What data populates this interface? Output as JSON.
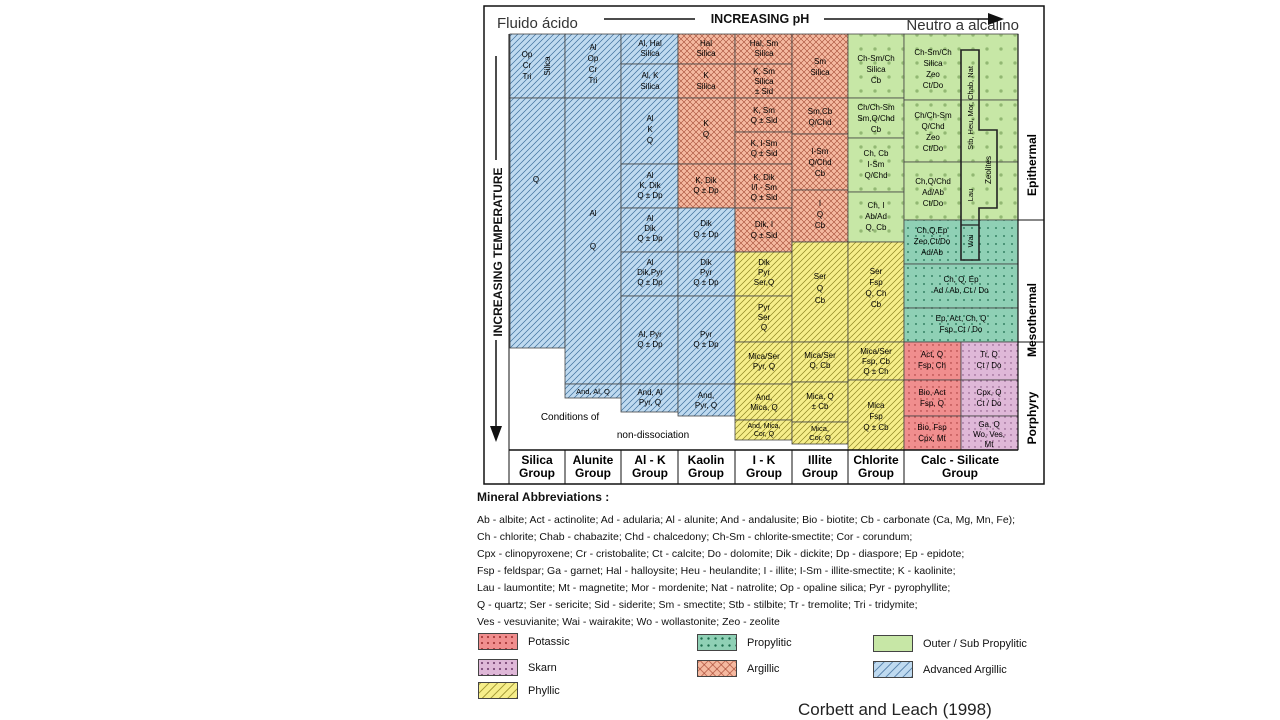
{
  "header": {
    "left": "Fluido ácido",
    "center": "INCREASING pH",
    "right": "Neutro a alcalino",
    "yaxis": "INCREASING TEMPERATURE"
  },
  "zones": {
    "epithermal": "Epithermal",
    "mesothermal": "Mesothermal",
    "porphyry": "Porphyry"
  },
  "groups": [
    [
      "Silica",
      "Group"
    ],
    [
      "Alunite",
      "Group"
    ],
    [
      "Al - K",
      "Group"
    ],
    [
      "Kaolin",
      "Group"
    ],
    [
      "I - K",
      "Group"
    ],
    [
      "Illite",
      "Group"
    ],
    [
      "Chlorite",
      "Group"
    ],
    [
      "Calc - Silicate",
      "Group"
    ]
  ],
  "notes": {
    "conditions": "Conditions  of",
    "nondiss": "non-dissociation",
    "zeolites": "Zeolites"
  },
  "cells": {
    "silica": [
      [
        "Op",
        "Cr",
        "Tri"
      ],
      [
        "Silica"
      ],
      [
        "Q"
      ]
    ],
    "alunite": [
      [
        "Al",
        "Op",
        "Cr",
        "Tri"
      ],
      [
        "Al",
        "",
        "Q"
      ],
      [
        "And, Al, Q"
      ]
    ],
    "alk": [
      [
        "Al, Hal",
        "Silica"
      ],
      [
        "Al, K",
        "Silica"
      ],
      [
        "Al",
        "K",
        "Q"
      ],
      [
        "Al",
        "K, Dik",
        "Q ± Dp"
      ],
      [
        "Al",
        "Dik",
        "Q ± Dp"
      ],
      [
        "Al",
        "Dik,Pyr",
        "Q ± Dp"
      ],
      [
        "Al, Pyr",
        "Q ± Dp"
      ],
      [
        "And, Al",
        "Pyr, Q"
      ]
    ],
    "kaolin": [
      [
        "Hal",
        "Silica"
      ],
      [
        "K",
        "Silica"
      ],
      [
        "K",
        "Q"
      ],
      [
        "K, Dik",
        "Q ± Dp"
      ],
      [
        "Dik",
        "Q ± Dp"
      ],
      [
        "Dik",
        "Pyr",
        "Q ± Dp"
      ],
      [
        "Pyr",
        "Q ± Dp"
      ],
      [
        "And,",
        "Pyr, Q"
      ]
    ],
    "ik": [
      [
        "Hal, Sm",
        "Silica"
      ],
      [
        "K, Sm",
        "Silica",
        "± Sid"
      ],
      [
        "K, Sm",
        "Q ± Sid"
      ],
      [
        "K, I-Sm",
        "Q ± Sid"
      ],
      [
        "K, Dik",
        "I/I - Sm",
        "Q ± Sid"
      ],
      [
        "Dik, I",
        "Q ± Sid"
      ],
      [
        "Dik",
        "Pyr",
        "Ser,Q"
      ],
      [
        "Pyr",
        "Ser",
        "Q"
      ],
      [
        "Mica/Ser",
        "Pyr, Q"
      ],
      [
        "And,",
        "Mica, Q"
      ],
      [
        "And, Mica,",
        "Cor, Q"
      ]
    ],
    "illite": [
      [
        "Sm",
        "Silica"
      ],
      [
        "Sm,Cb",
        "Q/Chd"
      ],
      [
        "I-Sm",
        "Q/Chd",
        "Cb"
      ],
      [
        "I",
        "Q",
        "Cb"
      ],
      [
        "Ser",
        "Q",
        "Cb"
      ],
      [
        "Mica/Ser",
        "Q, Cb"
      ],
      [
        "Mica, Q",
        "± Cb"
      ],
      [
        "Mica,",
        "Cor, Q"
      ]
    ],
    "chlorite": [
      [
        "Ch-Sm/Ch",
        "Silica",
        "Cb"
      ],
      [
        "Ch/Ch-Sm",
        "Sm,Q/Chd",
        "Cb"
      ],
      [
        "Ch, Cb",
        "I-Sm",
        "Q/Chd"
      ],
      [
        "Ch, I",
        "Ab/Ad",
        "Q, Cb"
      ],
      [
        "Ser",
        "Fsp",
        "Q, Ch",
        "Cb"
      ],
      [
        "Mica/Ser",
        "Fsp, Cb",
        "Q ± Ch"
      ],
      [
        "Mica",
        "Fsp",
        "Q ± Cb"
      ]
    ],
    "calc": [
      [
        "Ch-Sm/Ch",
        "Silica",
        "Zeo",
        "Ct/Do"
      ],
      [
        "Ch/Ch-Sm",
        "Q/Chd",
        "Zeo",
        "Ct/Do"
      ],
      [
        "Ch,Q/Chd",
        "Ad/Ab",
        "Ct/Do"
      ],
      [
        "Ch,Q,Ep",
        "Zeo,Ct/Do",
        "Ad/Ab"
      ],
      [
        "Ch, Q, Ep",
        "Ad / Ab, Ct / Do"
      ],
      [
        "Ep, Act, Ch, Q",
        "Fsp, Ct / Do"
      ],
      [
        "Act, Q",
        "Fsp, Ch"
      ],
      [
        "Bio, Act",
        "Fsp, Q"
      ],
      [
        "Bio, Fsp",
        "Cpx, Mt"
      ],
      [
        "Tr, Q",
        "Ct / Do"
      ],
      [
        "Cpx, Q",
        "Ct / Do"
      ],
      [
        "Ga, Q",
        "Wo, Ves,",
        "Mt"
      ]
    ],
    "zeolite_col": [
      "Stb, Heu, Mor, Chab, Nat",
      "Zeolites",
      "Lau",
      "Wai"
    ]
  },
  "abbreviations": {
    "title": "Mineral Abbreviations :",
    "lines": [
      "Ab - albite; Act - actinolite; Ad - adularia; Al - alunite; And - andalusite; Bio - biotite; Cb - carbonate (Ca, Mg, Mn, Fe);",
      "Ch - chlorite; Chab - chabazite; Chd - chalcedony; Ch-Sm - chlorite-smectite; Cor - corundum;",
      "Cpx - clinopyroxene; Cr - cristobalite; Ct - calcite; Do - dolomite; Dik - dickite; Dp - diaspore; Ep - epidote;",
      "Fsp - feldspar; Ga - garnet; Hal - halloysite; Heu - heulandite; I - illite; I-Sm - illite-smectite; K - kaolinite;",
      "Lau - laumontite; Mt - magnetite; Mor - mordenite; Nat - natrolite; Op - opaline silica; Pyr - pyrophyllite;",
      "Q - quartz; Ser - sericite; Sid - siderite; Sm - smectite; Stb - stilbite; Tr - tremolite; Tri - tridymite;",
      "Ves - vesuvianite; Wai - wairakite; Wo - wollastonite; Zeo - zeolite"
    ]
  },
  "legend": {
    "potassic": "Potassic",
    "skarn": "Skarn",
    "phyllic": "Phyllic",
    "propylitic": "Propylitic",
    "argillic": "Argillic",
    "outer": "Outer / Sub Propylitic",
    "advanced": "Advanced Argillic"
  },
  "credit": "Corbett and Leach (1998)",
  "colors": {
    "advanced_argillic": "#bfdaf0",
    "argillic": "#f5b9a0",
    "phyllic": "#f6ee8a",
    "propylitic": "#8fd0b5",
    "outer_propylitic": "#c7e7a6",
    "potassic": "#f08e8e",
    "skarn": "#dfb8d8"
  }
}
